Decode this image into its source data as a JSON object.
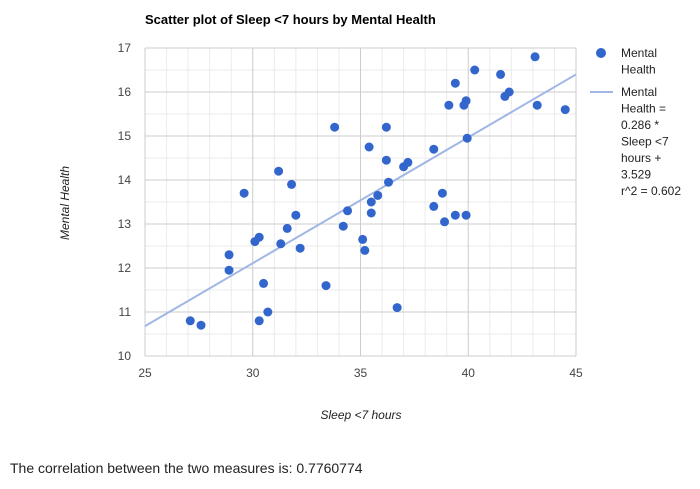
{
  "chart_data": {
    "type": "scatter",
    "title": "Scatter plot of Sleep <7 hours by Mental Health",
    "xlabel": "Sleep <7 hours",
    "ylabel": "Mental Health",
    "xlim": [
      25,
      45
    ],
    "ylim": [
      10,
      17
    ],
    "x_ticks": [
      25,
      30,
      35,
      40,
      45
    ],
    "y_ticks": [
      10,
      11,
      12,
      13,
      14,
      15,
      16,
      17
    ],
    "grid": true,
    "legend_position": "right",
    "series": [
      {
        "name": "Mental Health",
        "kind": "points",
        "color": "#3366cc",
        "points": [
          [
            27.1,
            10.8
          ],
          [
            27.6,
            10.7
          ],
          [
            28.9,
            12.3
          ],
          [
            28.9,
            11.95
          ],
          [
            29.6,
            13.7
          ],
          [
            30.1,
            12.6
          ],
          [
            30.3,
            12.7
          ],
          [
            30.3,
            10.8
          ],
          [
            30.5,
            11.65
          ],
          [
            30.7,
            11.0
          ],
          [
            31.2,
            14.2
          ],
          [
            31.3,
            12.55
          ],
          [
            31.6,
            12.9
          ],
          [
            31.8,
            13.9
          ],
          [
            32.0,
            13.2
          ],
          [
            32.2,
            12.45
          ],
          [
            33.4,
            11.6
          ],
          [
            33.8,
            15.2
          ],
          [
            34.2,
            12.95
          ],
          [
            34.4,
            13.3
          ],
          [
            35.1,
            12.65
          ],
          [
            35.2,
            12.4
          ],
          [
            35.4,
            14.75
          ],
          [
            35.5,
            13.25
          ],
          [
            35.5,
            13.5
          ],
          [
            35.8,
            13.65
          ],
          [
            36.2,
            15.2
          ],
          [
            36.2,
            14.45
          ],
          [
            36.3,
            13.95
          ],
          [
            36.7,
            11.1
          ],
          [
            37.0,
            14.3
          ],
          [
            37.2,
            14.4
          ],
          [
            38.4,
            14.7
          ],
          [
            38.4,
            13.4
          ],
          [
            38.8,
            13.7
          ],
          [
            38.9,
            13.05
          ],
          [
            39.1,
            15.7
          ],
          [
            39.4,
            16.2
          ],
          [
            39.4,
            13.2
          ],
          [
            39.8,
            15.7
          ],
          [
            39.9,
            15.8
          ],
          [
            39.9,
            13.2
          ],
          [
            39.95,
            14.95
          ],
          [
            40.3,
            16.5
          ],
          [
            41.5,
            16.4
          ],
          [
            41.7,
            15.9
          ],
          [
            41.9,
            16.0
          ],
          [
            43.1,
            16.8
          ],
          [
            43.2,
            15.7
          ],
          [
            44.5,
            15.6
          ]
        ]
      },
      {
        "name": "Mental Health = 0.286 * Sleep <7 hours + 3.529 r^2 = 0.602",
        "kind": "trendline",
        "color": "#9fb6e6",
        "slope": 0.286,
        "intercept": 3.529
      }
    ]
  },
  "legend": {
    "points_label_lines": [
      "Mental",
      "Health"
    ],
    "trend_label_lines": [
      "Mental",
      "Health =",
      "0.286 *",
      "Sleep <7",
      "hours +",
      "3.529",
      "r^2 = 0.602"
    ]
  },
  "footer": {
    "correlation_text": "The correlation between the two measures is: 0.7760774"
  }
}
